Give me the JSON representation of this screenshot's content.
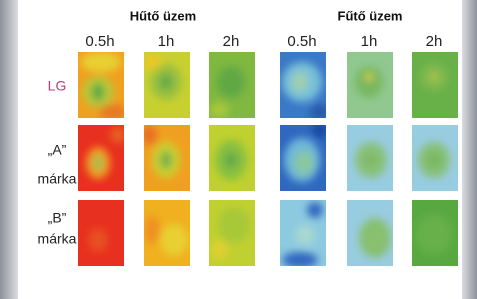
{
  "groups": [
    {
      "title": "Hűtő üzem",
      "times": [
        "0.5h",
        "1h",
        "2h"
      ]
    },
    {
      "title": "Fűtő üzem",
      "times": [
        "0.5h",
        "1h",
        "2h"
      ]
    }
  ],
  "rows": [
    {
      "label": [
        "LG"
      ]
    },
    {
      "label": [
        "„A”",
        "márka"
      ]
    },
    {
      "label": [
        "„B”",
        "márka"
      ]
    }
  ]
}
